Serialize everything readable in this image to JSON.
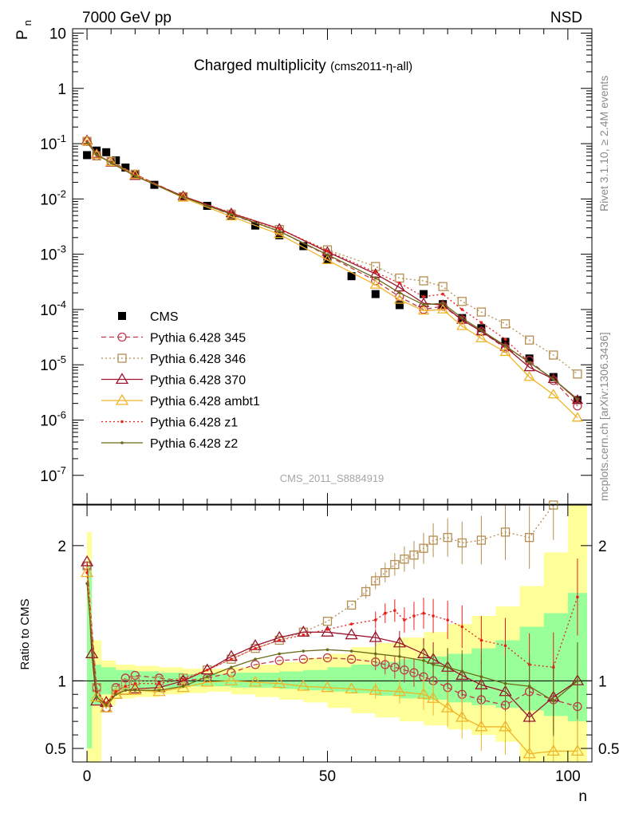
{
  "header": {
    "left": "7000 GeV pp",
    "right": "NSD"
  },
  "side_labels": {
    "rivet": "Rivet 3.1.10, ≥ 2.4M events",
    "mcplots": "mcplots.cern.ch [arXiv:1306.3436]"
  },
  "watermark": "CMS_2011_S8884919",
  "chart_data": [
    {
      "type": "line",
      "panel": "main",
      "title": "Charged multiplicity",
      "title_suffix": "(cms2011-η-all)",
      "xlabel": "n",
      "ylabel": "P",
      "ylabel_sub": "n",
      "y_scale": "log",
      "xlim": [
        -3,
        105
      ],
      "ylim": [
        3e-08,
        12
      ],
      "y_ticks": [
        "10^-7",
        "10^-6",
        "10^-5",
        "10^-4",
        "10^-3",
        "10^-2",
        "10^-1",
        "1",
        "10"
      ],
      "legend_position": "lower-left",
      "series": [
        {
          "name": "CMS",
          "color": "#000000",
          "marker": "filled-square",
          "line": "none",
          "x": [
            0,
            2,
            4,
            6,
            8,
            10,
            14,
            20,
            25,
            30,
            35,
            40,
            45,
            50,
            55,
            60,
            65,
            70,
            74,
            78,
            82,
            87,
            92,
            97,
            102
          ],
          "y": [
            0.062,
            0.075,
            0.07,
            0.05,
            0.037,
            0.028,
            0.018,
            0.011,
            0.0075,
            0.005,
            0.0033,
            0.0022,
            0.0014,
            0.0008,
            0.0004,
            0.00019,
            0.00012,
            0.00019,
            0.000125,
            7e-05,
            4.6e-05,
            2.6e-05,
            1.3e-05,
            6e-06,
            2.3e-06
          ]
        },
        {
          "name": "Pythia 6.428 345",
          "color": "#c0394b",
          "marker": "open-circle",
          "line": "dashed",
          "x": [
            0,
            2,
            5,
            10,
            20,
            30,
            40,
            50,
            60,
            65,
            70,
            74,
            78,
            82,
            87,
            92,
            97,
            102
          ],
          "y": [
            0.11,
            0.06,
            0.048,
            0.028,
            0.011,
            0.0052,
            0.0026,
            0.00095,
            0.00033,
            0.00017,
            0.0001,
            0.000115,
            6.5e-05,
            4e-05,
            2e-05,
            1.2e-05,
            5.2e-06,
            1.8e-06
          ]
        },
        {
          "name": "Pythia 6.428 346",
          "color": "#b58e52",
          "marker": "open-square",
          "line": "dotted",
          "x": [
            0,
            2,
            5,
            10,
            20,
            30,
            40,
            50,
            60,
            65,
            70,
            74,
            78,
            82,
            87,
            92,
            97,
            102
          ],
          "y": [
            0.11,
            0.06,
            0.048,
            0.028,
            0.011,
            0.0053,
            0.0028,
            0.0012,
            0.0006,
            0.00037,
            0.00033,
            0.00026,
            0.00014,
            9e-05,
            5.5e-05,
            2.8e-05,
            1.5e-05,
            6.8e-06
          ]
        },
        {
          "name": "Pythia 6.428 370",
          "color": "#99162e",
          "marker": "open-triangle",
          "line": "solid",
          "x": [
            0,
            2,
            5,
            10,
            20,
            30,
            40,
            50,
            60,
            65,
            70,
            74,
            78,
            82,
            87,
            92,
            97,
            102
          ],
          "y": [
            0.115,
            0.065,
            0.045,
            0.026,
            0.0112,
            0.0055,
            0.0029,
            0.0011,
            0.00044,
            0.00025,
            0.00013,
            0.00012,
            6.5e-05,
            4e-05,
            2.1e-05,
            9e-06,
            5.5e-06,
            2.3e-06
          ]
        },
        {
          "name": "Pythia 6.428 ambt1",
          "color": "#f0b429",
          "marker": "open-triangle",
          "line": "solid",
          "x": [
            0,
            2,
            5,
            10,
            20,
            30,
            40,
            50,
            60,
            65,
            70,
            74,
            78,
            82,
            87,
            92,
            97,
            102
          ],
          "y": [
            0.11,
            0.063,
            0.046,
            0.027,
            0.0105,
            0.0048,
            0.0023,
            0.00078,
            0.00028,
            0.00015,
            9.5e-05,
            0.0001,
            5e-05,
            3e-05,
            1.7e-05,
            6e-06,
            2.9e-06,
            1.1e-06
          ]
        },
        {
          "name": "Pythia 6.428 z1",
          "color": "#e8201a",
          "marker": "dot",
          "line": "dotted",
          "x": [
            0,
            2,
            5,
            10,
            20,
            30,
            40,
            50,
            60,
            65,
            70,
            74,
            78,
            82,
            87,
            92,
            97,
            102
          ],
          "y": [
            0.11,
            0.062,
            0.046,
            0.027,
            0.0112,
            0.0056,
            0.0029,
            0.00115,
            0.00047,
            0.0003,
            0.00017,
            0.00019,
            0.0001,
            5.8e-05,
            2.9e-05,
            1.1e-05,
            5.5e-06,
            2.3e-06
          ]
        },
        {
          "name": "Pythia 6.428 z2",
          "color": "#6b6b1a",
          "marker": "dot",
          "line": "solid",
          "x": [
            0,
            2,
            5,
            10,
            20,
            30,
            40,
            50,
            60,
            65,
            70,
            74,
            78,
            82,
            87,
            92,
            97,
            102
          ],
          "y": [
            0.105,
            0.063,
            0.045,
            0.026,
            0.0108,
            0.0053,
            0.0026,
            0.00098,
            0.00037,
            0.0002,
            0.000122,
            0.00013,
            7e-05,
            4.2e-05,
            2.2e-05,
            1.1e-05,
            5.5e-06,
            2.4e-06
          ]
        }
      ]
    },
    {
      "type": "line",
      "panel": "ratio",
      "ylabel": "Ratio to CMS",
      "xlim": [
        -3,
        105
      ],
      "ylim": [
        0.4,
        2.3
      ],
      "x_ticks": [
        0,
        50,
        100
      ],
      "y_ticks": [
        0.5,
        1,
        2
      ],
      "reference_line": 1,
      "bands": {
        "x": [
          0,
          1,
          3,
          6,
          10,
          15,
          20,
          25,
          30,
          35,
          40,
          45,
          50,
          55,
          60,
          65,
          70,
          75,
          80,
          85,
          90,
          95,
          100,
          104
        ],
        "green": [
          0.5,
          0.82,
          0.9,
          0.93,
          0.94,
          0.95,
          0.96,
          0.96,
          0.95,
          0.95,
          0.94,
          0.93,
          0.92,
          0.91,
          0.89,
          0.87,
          0.86,
          0.84,
          0.82,
          0.8,
          0.78,
          0.74,
          0.7,
          0.7
        ],
        "green_hi": [
          1.85,
          1.12,
          1.1,
          1.08,
          1.07,
          1.06,
          1.05,
          1.05,
          1.06,
          1.06,
          1.07,
          1.08,
          1.1,
          1.12,
          1.14,
          1.16,
          1.18,
          1.2,
          1.24,
          1.3,
          1.4,
          1.5,
          1.65,
          1.65
        ],
        "yellow": [
          0.35,
          0.35,
          0.82,
          0.87,
          0.88,
          0.9,
          0.91,
          0.92,
          0.9,
          0.88,
          0.86,
          0.84,
          0.8,
          0.76,
          0.73,
          0.7,
          0.67,
          0.64,
          0.6,
          0.55,
          0.35,
          0.35,
          0.35,
          0.35
        ],
        "yellow_hi": [
          2.1,
          1.3,
          1.15,
          1.12,
          1.11,
          1.1,
          1.09,
          1.09,
          1.1,
          1.12,
          1.14,
          1.17,
          1.2,
          1.25,
          1.28,
          1.32,
          1.36,
          1.42,
          1.48,
          1.55,
          1.7,
          1.95,
          2.3,
          2.3
        ]
      },
      "series": [
        {
          "name": "Pythia 6.428 345",
          "color": "#c0394b",
          "marker": "open-circle",
          "line": "dashed",
          "x": [
            0,
            2,
            4,
            6,
            8,
            10,
            15,
            20,
            25,
            30,
            35,
            40,
            45,
            50,
            55,
            60,
            62,
            64,
            66,
            68,
            70,
            72,
            75,
            78,
            82,
            87,
            92,
            97,
            102
          ],
          "y": [
            1.85,
            0.95,
            0.8,
            0.95,
            1.02,
            1.04,
            1.02,
            1.0,
            1.02,
            1.06,
            1.12,
            1.15,
            1.16,
            1.17,
            1.16,
            1.14,
            1.12,
            1.1,
            1.08,
            1.06,
            1.03,
            1.0,
            0.95,
            0.9,
            0.86,
            0.82,
            0.92,
            0.86,
            0.81
          ]
        },
        {
          "name": "Pythia 6.428 346",
          "color": "#b58e52",
          "marker": "open-square",
          "line": "dotted",
          "x": [
            0,
            2,
            4,
            6,
            8,
            10,
            15,
            20,
            25,
            30,
            35,
            40,
            45,
            50,
            55,
            58,
            60,
            62,
            64,
            66,
            68,
            70,
            72,
            75,
            78,
            82,
            87,
            92,
            97
          ],
          "y": [
            1.85,
            0.95,
            0.8,
            0.93,
            0.98,
            1.0,
            1.0,
            1.02,
            1.08,
            1.16,
            1.24,
            1.3,
            1.36,
            1.44,
            1.56,
            1.66,
            1.74,
            1.8,
            1.86,
            1.9,
            1.93,
            1.98,
            2.04,
            2.06,
            2.02,
            2.04,
            2.1,
            2.06,
            2.3
          ]
        },
        {
          "name": "Pythia 6.428 370",
          "color": "#99162e",
          "marker": "open-triangle",
          "line": "solid",
          "x": [
            0,
            1,
            2,
            4,
            6,
            8,
            10,
            15,
            20,
            25,
            30,
            35,
            40,
            45,
            50,
            55,
            60,
            65,
            70,
            72,
            75,
            78,
            82,
            87,
            92,
            97,
            102
          ],
          "y": [
            1.88,
            1.2,
            0.85,
            0.84,
            0.9,
            0.93,
            0.94,
            0.95,
            1.0,
            1.08,
            1.18,
            1.26,
            1.32,
            1.36,
            1.36,
            1.34,
            1.32,
            1.28,
            1.2,
            1.16,
            1.1,
            1.04,
            0.97,
            0.92,
            0.73,
            0.88,
            1.0
          ]
        },
        {
          "name": "Pythia 6.428 ambt1",
          "color": "#f0b429",
          "marker": "open-triangle",
          "line": "solid",
          "x": [
            0,
            2,
            4,
            6,
            8,
            10,
            15,
            20,
            25,
            30,
            35,
            40,
            45,
            50,
            55,
            60,
            65,
            70,
            72,
            75,
            78,
            82,
            87,
            92,
            97,
            102
          ],
          "y": [
            1.8,
            0.88,
            0.8,
            0.9,
            0.93,
            0.93,
            0.92,
            0.95,
            0.99,
            1.0,
            0.99,
            0.98,
            0.96,
            0.95,
            0.94,
            0.93,
            0.92,
            0.9,
            0.87,
            0.8,
            0.73,
            0.66,
            0.66,
            0.46,
            0.48,
            0.48
          ]
        },
        {
          "name": "Pythia 6.428 z1",
          "color": "#e8201a",
          "marker": "dot",
          "line": "dotted",
          "x": [
            0,
            2,
            4,
            6,
            8,
            10,
            15,
            20,
            25,
            30,
            35,
            40,
            45,
            50,
            55,
            60,
            62,
            64,
            66,
            68,
            70,
            72,
            75,
            78,
            82,
            87,
            92,
            97,
            102
          ],
          "y": [
            1.8,
            0.92,
            0.83,
            0.92,
            0.96,
            0.98,
            0.98,
            1.01,
            1.08,
            1.16,
            1.24,
            1.3,
            1.34,
            1.38,
            1.42,
            1.45,
            1.5,
            1.52,
            1.45,
            1.48,
            1.5,
            1.48,
            1.45,
            1.4,
            1.3,
            1.26,
            1.12,
            1.1,
            1.62
          ]
        },
        {
          "name": "Pythia 6.428 z2",
          "color": "#6b6b1a",
          "marker": "dot",
          "line": "solid",
          "x": [
            0,
            2,
            4,
            6,
            8,
            10,
            15,
            20,
            25,
            30,
            35,
            40,
            45,
            50,
            55,
            60,
            65,
            70,
            72,
            75,
            78,
            82,
            87,
            92,
            97,
            102
          ],
          "y": [
            1.72,
            0.88,
            0.82,
            0.9,
            0.93,
            0.93,
            0.93,
            0.96,
            1.03,
            1.1,
            1.16,
            1.2,
            1.22,
            1.23,
            1.22,
            1.2,
            1.18,
            1.15,
            1.12,
            1.1,
            1.07,
            1.03,
            0.98,
            0.96,
            0.85,
            1.0
          ]
        }
      ]
    }
  ]
}
